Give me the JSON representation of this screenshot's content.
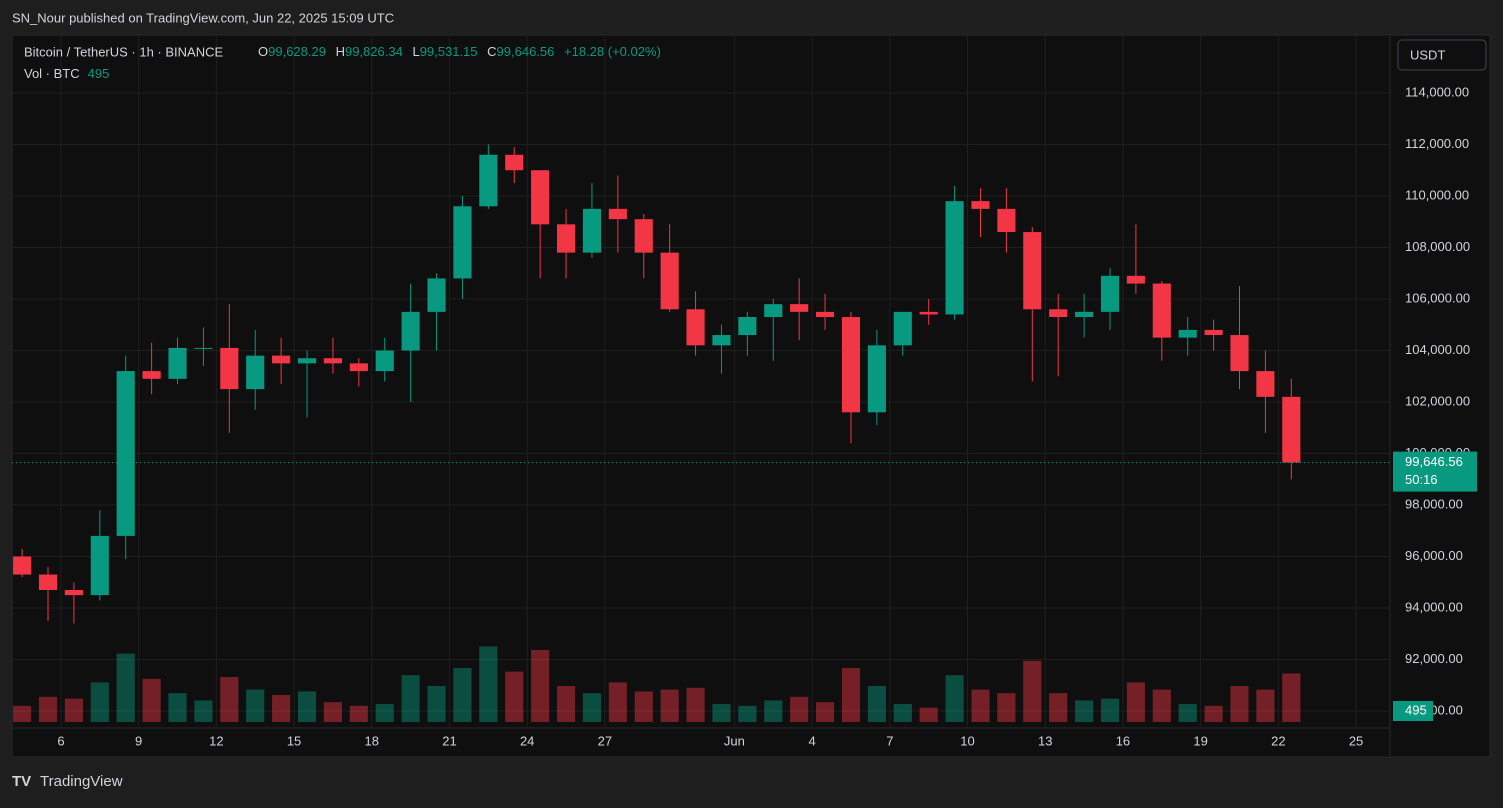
{
  "header": {
    "publisher": "SN_Nour published on TradingView.com, Jun 22, 2025 15:09 UTC",
    "brand": "TradingView"
  },
  "chart_data": {
    "type": "candlestick",
    "title": "Bitcoin / TetherUS · 1h · BINANCE",
    "legend": {
      "o_label": "O",
      "open": "99,628.29",
      "h_label": "H",
      "high": "99,826.34",
      "l_label": "L",
      "low": "99,531.15",
      "c_label": "C",
      "close": "99,646.56",
      "change": "+18.28 (+0.02%)",
      "vol_label": "Vol · BTC",
      "vol": "495"
    },
    "currency": "USDT",
    "countdown": "50:16",
    "up_color": "#089981",
    "down_color": "#f23645",
    "x": [
      4,
      5,
      6,
      7,
      8,
      9,
      10,
      11,
      12,
      13,
      14,
      15,
      16,
      17,
      18,
      19,
      20,
      21,
      22,
      23,
      24,
      25,
      26,
      27,
      28,
      29,
      30,
      31,
      32,
      33,
      34,
      35,
      36,
      37,
      38,
      39,
      40,
      41,
      42,
      43,
      44,
      45,
      46,
      47,
      48,
      49,
      50,
      51,
      52,
      53
    ],
    "open": [
      96000,
      95300,
      94700,
      94500,
      96800,
      103200,
      102900,
      104100,
      104100,
      102500,
      103800,
      103500,
      103700,
      103500,
      103200,
      104000,
      105500,
      106800,
      109600,
      111600,
      111000,
      108900,
      107800,
      109500,
      109100,
      107800,
      105600,
      104200,
      104600,
      105300,
      105800,
      105500,
      105300,
      101600,
      104200,
      105500,
      105400,
      109800,
      109500,
      108600,
      105600,
      105300,
      105500,
      106900,
      106600,
      104500,
      104800,
      104600,
      103200,
      102200
    ],
    "high": [
      96300,
      95600,
      95000,
      97800,
      103800,
      104300,
      104500,
      104900,
      105800,
      104800,
      104500,
      104000,
      104500,
      103700,
      104500,
      106600,
      107000,
      110000,
      112000,
      111900,
      111000,
      109500,
      110500,
      110800,
      109300,
      108900,
      106300,
      105000,
      105500,
      106000,
      106800,
      106200,
      105500,
      104800,
      105500,
      106000,
      110400,
      110300,
      110300,
      108800,
      106200,
      106200,
      107200,
      108900,
      106700,
      105300,
      105200,
      106500,
      104000,
      102900
    ],
    "low": [
      95200,
      93500,
      93400,
      94300,
      95900,
      102300,
      102700,
      103400,
      100800,
      101700,
      102700,
      101400,
      103100,
      102600,
      102800,
      102000,
      104000,
      106000,
      109500,
      110500,
      106800,
      106800,
      107600,
      107800,
      106800,
      105500,
      103800,
      103100,
      103800,
      103600,
      104400,
      104800,
      100400,
      101100,
      103800,
      105000,
      105200,
      108400,
      107800,
      102800,
      103000,
      104500,
      104800,
      106200,
      103600,
      103800,
      104000,
      102500,
      100800,
      99000
    ],
    "close": [
      95300,
      94700,
      94500,
      96800,
      103200,
      102900,
      104100,
      104100,
      102500,
      103800,
      103500,
      103700,
      103500,
      103200,
      104000,
      105500,
      106800,
      109600,
      111600,
      111000,
      108900,
      107800,
      109500,
      109100,
      107800,
      105600,
      104200,
      104600,
      105300,
      105800,
      105500,
      105300,
      101600,
      104200,
      105500,
      105400,
      109800,
      109500,
      108600,
      105600,
      105300,
      105500,
      106900,
      106600,
      104500,
      104800,
      104600,
      103200,
      102200,
      99646.56
    ],
    "volume": [
      9000,
      14000,
      13000,
      22000,
      38000,
      24000,
      16000,
      12000,
      25000,
      18000,
      15000,
      17000,
      11000,
      9000,
      10000,
      26000,
      20000,
      30000,
      42000,
      28000,
      40000,
      20000,
      16000,
      22000,
      17000,
      18000,
      19000,
      10000,
      9000,
      12000,
      14000,
      11000,
      30000,
      20000,
      10000,
      8000,
      26000,
      18000,
      16000,
      34000,
      16000,
      12000,
      13000,
      22000,
      18000,
      10000,
      9000,
      20000,
      18000,
      27000
    ],
    "volume_ylim": [
      0,
      90000
    ],
    "last_price": {
      "value": 99646.56,
      "label": "99,646.56"
    },
    "last_volume": 495,
    "xlim": [
      4.11,
      57.31
    ],
    "xticks": [
      6,
      9,
      12,
      15,
      18,
      21,
      24,
      27,
      {
        "value": 32,
        "label": "Jun"
      },
      {
        "value": 35,
        "label": "4"
      },
      {
        "value": 38,
        "label": "7"
      },
      {
        "value": 41,
        "label": "10"
      },
      {
        "value": 44,
        "label": "13"
      },
      {
        "value": 47,
        "label": "16"
      },
      {
        "value": 50,
        "label": "19"
      },
      {
        "value": 53,
        "label": "22"
      },
      {
        "value": 56,
        "label": "25"
      }
    ],
    "ylim": [
      88214,
      116252
    ],
    "yticks": [
      {
        "value": 114000,
        "label": "114,000.00"
      },
      {
        "value": 112000,
        "label": "112,000.00"
      },
      {
        "value": 110000,
        "label": "110,000.00"
      },
      {
        "value": 108000,
        "label": "108,000.00"
      },
      {
        "value": 106000,
        "label": "106,000.00"
      },
      {
        "value": 104000,
        "label": "104,000.00"
      },
      {
        "value": 102000,
        "label": "102,000.00"
      },
      {
        "value": 100000,
        "label": "100,000.00"
      },
      {
        "value": 98000,
        "label": "98,000.00"
      },
      {
        "value": 96000,
        "label": "96,000.00"
      },
      {
        "value": 94000,
        "label": "94,000.00"
      },
      {
        "value": 92000,
        "label": "92,000.00"
      },
      {
        "value": 90000,
        "label": "90,000.00"
      }
    ],
    "grid": true
  }
}
